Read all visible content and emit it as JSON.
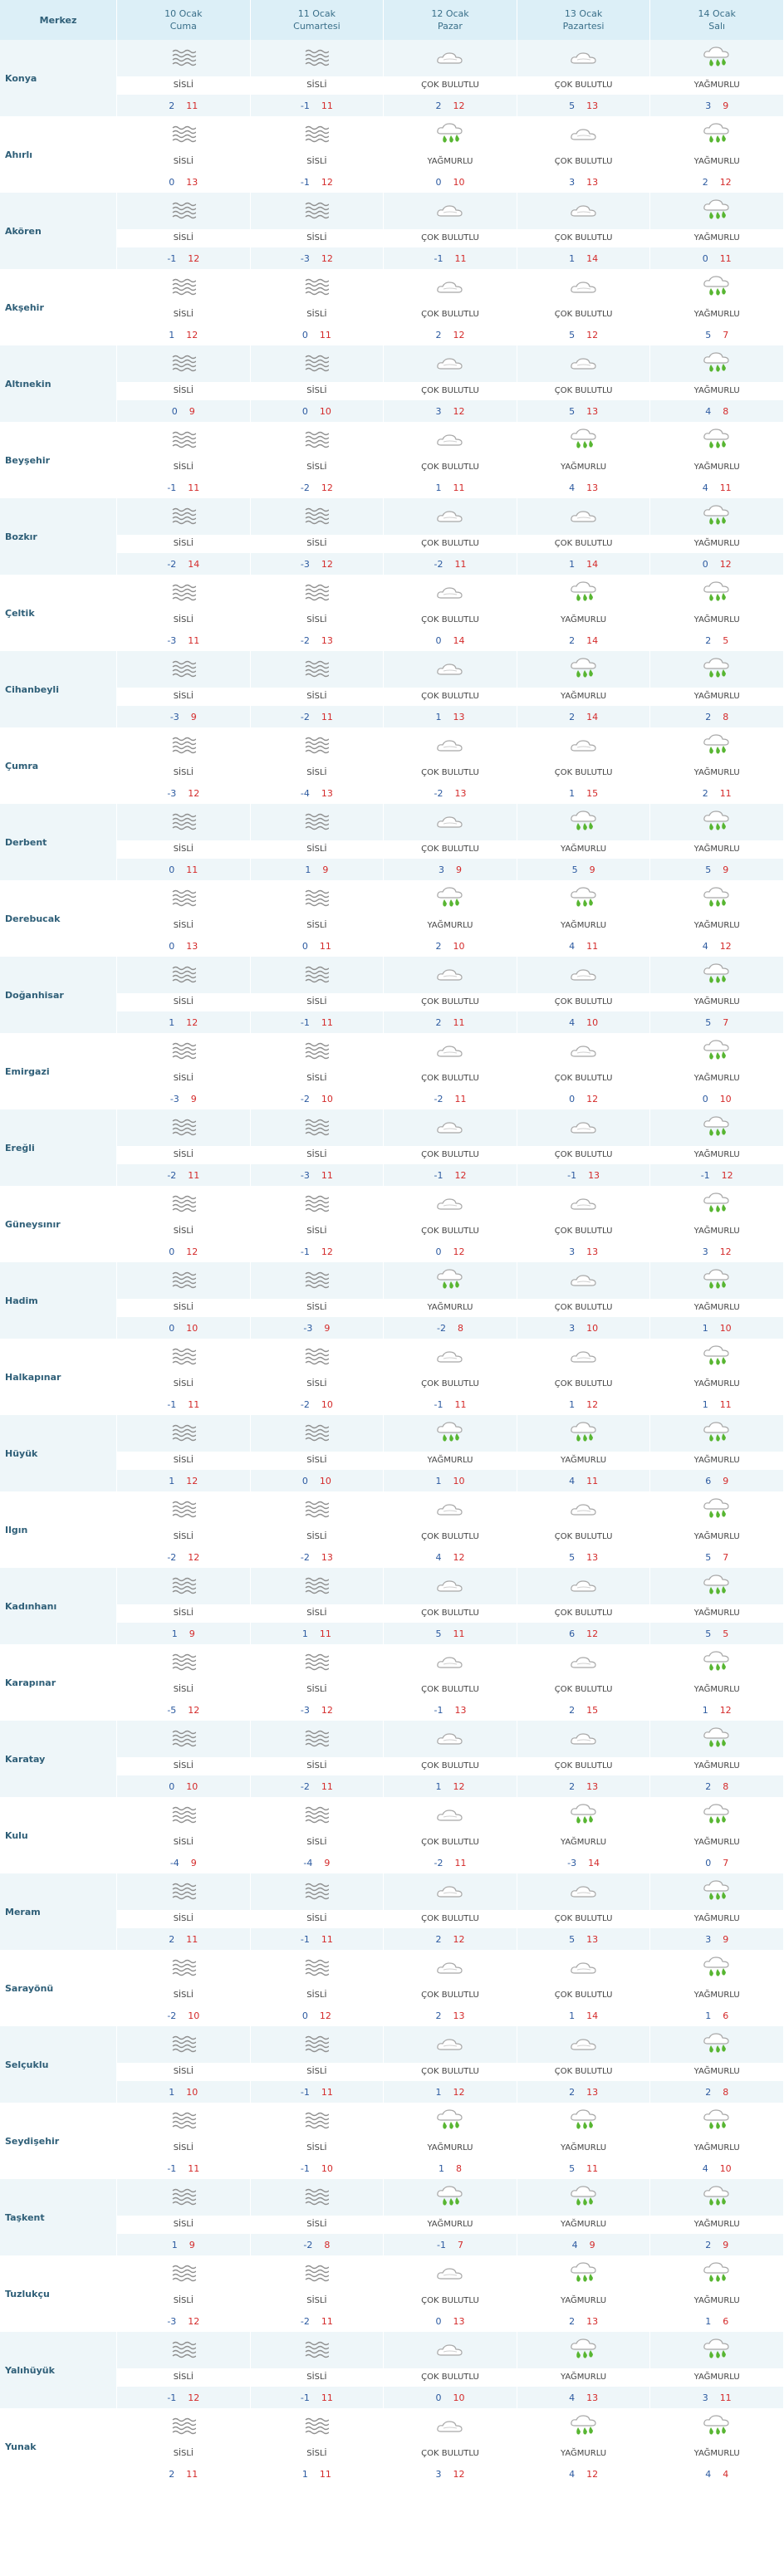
{
  "header": {
    "first_col": "Merkez",
    "days": [
      {
        "date": "10 Ocak",
        "weekday": "Cuma"
      },
      {
        "date": "11 Ocak",
        "weekday": "Cumartesi"
      },
      {
        "date": "12 Ocak",
        "weekday": "Pazar"
      },
      {
        "date": "13 Ocak",
        "weekday": "Pazartesi"
      },
      {
        "date": "14 Ocak",
        "weekday": "Salı"
      }
    ]
  },
  "conditions": {
    "fog": {
      "label": "SİSLİ",
      "icon": "fog-icon"
    },
    "cloud": {
      "label": "ÇOK BULUTLU",
      "icon": "cloud-icon"
    },
    "rain": {
      "label": "YAĞMURLU",
      "icon": "rain-icon"
    }
  },
  "colors": {
    "min": "#2c5aa0",
    "max": "#d42a2a",
    "header": "#dceff7",
    "row_alt": "#eef6f9"
  },
  "rows": [
    {
      "city": "Konya",
      "f": [
        [
          "fog",
          2,
          11
        ],
        [
          "fog",
          -1,
          11
        ],
        [
          "cloud",
          2,
          12
        ],
        [
          "cloud",
          5,
          13
        ],
        [
          "rain",
          3,
          9
        ]
      ]
    },
    {
      "city": "Ahırlı",
      "f": [
        [
          "fog",
          0,
          13
        ],
        [
          "fog",
          -1,
          12
        ],
        [
          "rain",
          0,
          10
        ],
        [
          "cloud",
          3,
          13
        ],
        [
          "rain",
          2,
          12
        ]
      ]
    },
    {
      "city": "Akören",
      "f": [
        [
          "fog",
          -1,
          12
        ],
        [
          "fog",
          -3,
          12
        ],
        [
          "cloud",
          -1,
          11
        ],
        [
          "cloud",
          1,
          14
        ],
        [
          "rain",
          0,
          11
        ]
      ]
    },
    {
      "city": "Akşehir",
      "f": [
        [
          "fog",
          1,
          12
        ],
        [
          "fog",
          0,
          11
        ],
        [
          "cloud",
          2,
          12
        ],
        [
          "cloud",
          5,
          12
        ],
        [
          "rain",
          5,
          7
        ]
      ]
    },
    {
      "city": "Altınekin",
      "f": [
        [
          "fog",
          0,
          9
        ],
        [
          "fog",
          0,
          10
        ],
        [
          "cloud",
          3,
          12
        ],
        [
          "cloud",
          5,
          13
        ],
        [
          "rain",
          4,
          8
        ]
      ]
    },
    {
      "city": "Beyşehir",
      "f": [
        [
          "fog",
          -1,
          11
        ],
        [
          "fog",
          -2,
          12
        ],
        [
          "cloud",
          1,
          11
        ],
        [
          "rain",
          4,
          13
        ],
        [
          "rain",
          4,
          11
        ]
      ]
    },
    {
      "city": "Bozkır",
      "f": [
        [
          "fog",
          -2,
          14
        ],
        [
          "fog",
          -3,
          12
        ],
        [
          "cloud",
          -2,
          11
        ],
        [
          "cloud",
          1,
          14
        ],
        [
          "rain",
          0,
          12
        ]
      ]
    },
    {
      "city": "Çeltik",
      "f": [
        [
          "fog",
          -3,
          11
        ],
        [
          "fog",
          -2,
          13
        ],
        [
          "cloud",
          0,
          14
        ],
        [
          "rain",
          2,
          14
        ],
        [
          "rain",
          2,
          5
        ]
      ]
    },
    {
      "city": "Cihanbeyli",
      "f": [
        [
          "fog",
          -3,
          9
        ],
        [
          "fog",
          -2,
          11
        ],
        [
          "cloud",
          1,
          13
        ],
        [
          "rain",
          2,
          14
        ],
        [
          "rain",
          2,
          8
        ]
      ]
    },
    {
      "city": "Çumra",
      "f": [
        [
          "fog",
          -3,
          12
        ],
        [
          "fog",
          -4,
          13
        ],
        [
          "cloud",
          -2,
          13
        ],
        [
          "cloud",
          1,
          15
        ],
        [
          "rain",
          2,
          11
        ]
      ]
    },
    {
      "city": "Derbent",
      "f": [
        [
          "fog",
          0,
          11
        ],
        [
          "fog",
          1,
          9
        ],
        [
          "cloud",
          3,
          9
        ],
        [
          "rain",
          5,
          9
        ],
        [
          "rain",
          5,
          9
        ]
      ]
    },
    {
      "city": "Derebucak",
      "f": [
        [
          "fog",
          0,
          13
        ],
        [
          "fog",
          0,
          11
        ],
        [
          "rain",
          2,
          10
        ],
        [
          "rain",
          4,
          11
        ],
        [
          "rain",
          4,
          12
        ]
      ]
    },
    {
      "city": "Doğanhisar",
      "f": [
        [
          "fog",
          1,
          12
        ],
        [
          "fog",
          -1,
          11
        ],
        [
          "cloud",
          2,
          11
        ],
        [
          "cloud",
          4,
          10
        ],
        [
          "rain",
          5,
          7
        ]
      ]
    },
    {
      "city": "Emirgazi",
      "f": [
        [
          "fog",
          -3,
          9
        ],
        [
          "fog",
          -2,
          10
        ],
        [
          "cloud",
          -2,
          11
        ],
        [
          "cloud",
          0,
          12
        ],
        [
          "rain",
          0,
          10
        ]
      ]
    },
    {
      "city": "Ereğli",
      "f": [
        [
          "fog",
          -2,
          11
        ],
        [
          "fog",
          -3,
          11
        ],
        [
          "cloud",
          -1,
          12
        ],
        [
          "cloud",
          -1,
          13
        ],
        [
          "rain",
          -1,
          12
        ]
      ]
    },
    {
      "city": "Güneysınır",
      "f": [
        [
          "fog",
          0,
          12
        ],
        [
          "fog",
          -1,
          12
        ],
        [
          "cloud",
          0,
          12
        ],
        [
          "cloud",
          3,
          13
        ],
        [
          "rain",
          3,
          12
        ]
      ]
    },
    {
      "city": "Hadim",
      "f": [
        [
          "fog",
          0,
          10
        ],
        [
          "fog",
          -3,
          9
        ],
        [
          "rain",
          -2,
          8
        ],
        [
          "cloud",
          3,
          10
        ],
        [
          "rain",
          1,
          10
        ]
      ]
    },
    {
      "city": "Halkapınar",
      "f": [
        [
          "fog",
          -1,
          11
        ],
        [
          "fog",
          -2,
          10
        ],
        [
          "cloud",
          -1,
          11
        ],
        [
          "cloud",
          1,
          12
        ],
        [
          "rain",
          1,
          11
        ]
      ]
    },
    {
      "city": "Hüyük",
      "f": [
        [
          "fog",
          1,
          12
        ],
        [
          "fog",
          0,
          10
        ],
        [
          "rain",
          1,
          10
        ],
        [
          "rain",
          4,
          11
        ],
        [
          "rain",
          6,
          9
        ]
      ]
    },
    {
      "city": "Ilgın",
      "f": [
        [
          "fog",
          -2,
          12
        ],
        [
          "fog",
          -2,
          13
        ],
        [
          "cloud",
          4,
          12
        ],
        [
          "cloud",
          5,
          13
        ],
        [
          "rain",
          5,
          7
        ]
      ]
    },
    {
      "city": "Kadınhanı",
      "f": [
        [
          "fog",
          1,
          9
        ],
        [
          "fog",
          1,
          11
        ],
        [
          "cloud",
          5,
          11
        ],
        [
          "cloud",
          6,
          12
        ],
        [
          "rain",
          5,
          5
        ]
      ]
    },
    {
      "city": "Karapınar",
      "f": [
        [
          "fog",
          -5,
          12
        ],
        [
          "fog",
          -3,
          12
        ],
        [
          "cloud",
          -1,
          13
        ],
        [
          "cloud",
          2,
          15
        ],
        [
          "rain",
          1,
          12
        ]
      ]
    },
    {
      "city": "Karatay",
      "f": [
        [
          "fog",
          0,
          10
        ],
        [
          "fog",
          -2,
          11
        ],
        [
          "cloud",
          1,
          12
        ],
        [
          "cloud",
          2,
          13
        ],
        [
          "rain",
          2,
          8
        ]
      ]
    },
    {
      "city": "Kulu",
      "f": [
        [
          "fog",
          -4,
          9
        ],
        [
          "fog",
          -4,
          9
        ],
        [
          "cloud",
          -2,
          11
        ],
        [
          "rain",
          -3,
          14
        ],
        [
          "rain",
          0,
          7
        ]
      ]
    },
    {
      "city": "Meram",
      "f": [
        [
          "fog",
          2,
          11
        ],
        [
          "fog",
          -1,
          11
        ],
        [
          "cloud",
          2,
          12
        ],
        [
          "cloud",
          5,
          13
        ],
        [
          "rain",
          3,
          9
        ]
      ]
    },
    {
      "city": "Sarayönü",
      "f": [
        [
          "fog",
          -2,
          10
        ],
        [
          "fog",
          0,
          12
        ],
        [
          "cloud",
          2,
          13
        ],
        [
          "cloud",
          1,
          14
        ],
        [
          "rain",
          1,
          6
        ]
      ]
    },
    {
      "city": "Selçuklu",
      "f": [
        [
          "fog",
          1,
          10
        ],
        [
          "fog",
          -1,
          11
        ],
        [
          "cloud",
          1,
          12
        ],
        [
          "cloud",
          2,
          13
        ],
        [
          "rain",
          2,
          8
        ]
      ]
    },
    {
      "city": "Seydişehir",
      "f": [
        [
          "fog",
          -1,
          11
        ],
        [
          "fog",
          -1,
          10
        ],
        [
          "rain",
          1,
          8
        ],
        [
          "rain",
          5,
          11
        ],
        [
          "rain",
          4,
          10
        ]
      ]
    },
    {
      "city": "Taşkent",
      "f": [
        [
          "fog",
          1,
          9
        ],
        [
          "fog",
          -2,
          8
        ],
        [
          "rain",
          -1,
          7
        ],
        [
          "rain",
          4,
          9
        ],
        [
          "rain",
          2,
          9
        ]
      ]
    },
    {
      "city": "Tuzlukçu",
      "f": [
        [
          "fog",
          -3,
          12
        ],
        [
          "fog",
          -2,
          11
        ],
        [
          "cloud",
          0,
          13
        ],
        [
          "rain",
          2,
          13
        ],
        [
          "rain",
          1,
          6
        ]
      ]
    },
    {
      "city": "Yalıhüyük",
      "f": [
        [
          "fog",
          -1,
          12
        ],
        [
          "fog",
          -1,
          11
        ],
        [
          "cloud",
          0,
          10
        ],
        [
          "rain",
          4,
          13
        ],
        [
          "rain",
          3,
          11
        ]
      ]
    },
    {
      "city": "Yunak",
      "f": [
        [
          "fog",
          2,
          11
        ],
        [
          "fog",
          1,
          11
        ],
        [
          "cloud",
          3,
          12
        ],
        [
          "rain",
          4,
          12
        ],
        [
          "rain",
          4,
          4
        ]
      ]
    }
  ]
}
